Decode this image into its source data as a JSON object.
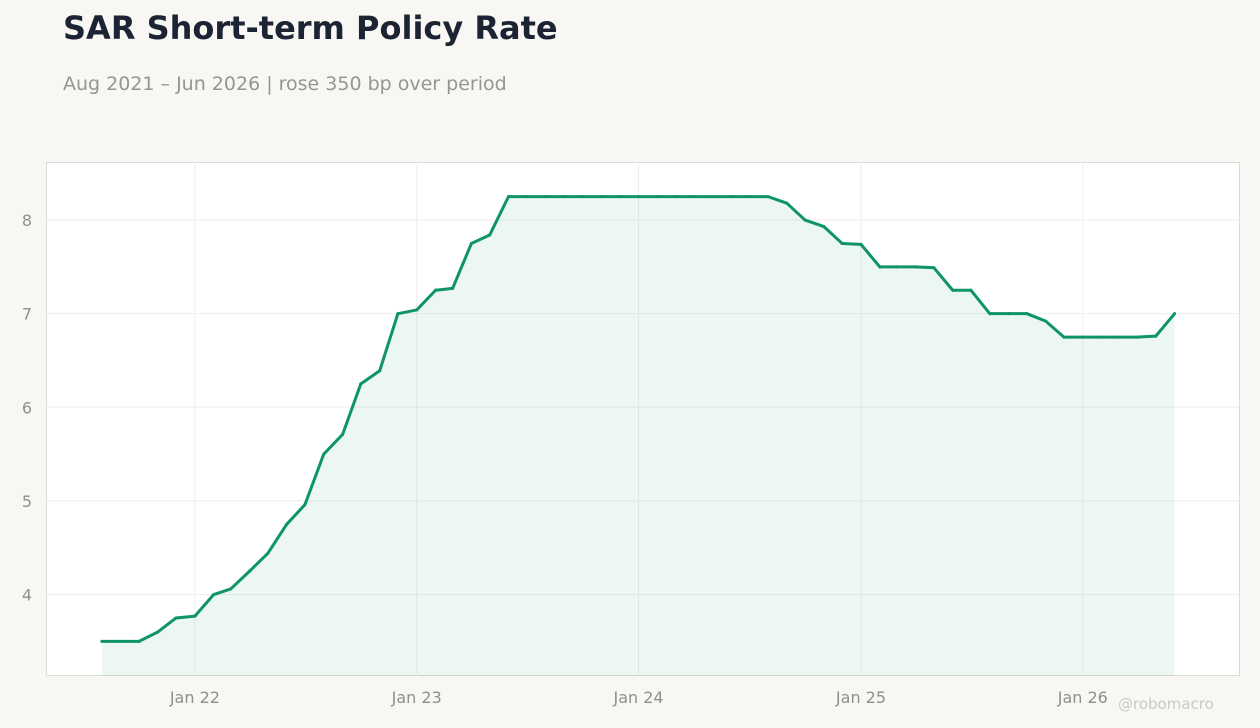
{
  "title": "SAR Short-term Policy Rate",
  "subtitle": "Aug 2021 – Jun 2026 | rose 350 bp over period",
  "watermark": "@robomacro",
  "colors": {
    "line": "#0f9467",
    "fill": "#0f9467",
    "background": "#f8f7f4",
    "plot_bg": "#ffffff"
  },
  "chart_data": {
    "type": "area",
    "title": "SAR Short-term Policy Rate",
    "subtitle": "Aug 2021 – Jun 2026 | rose 350 bp over period",
    "xlabel": "",
    "ylabel": "",
    "grid": true,
    "legend": "none",
    "x_ticks": [
      {
        "date": "2022-01-01",
        "label": "Jan 22"
      },
      {
        "date": "2023-01-01",
        "label": "Jan 23"
      },
      {
        "date": "2024-01-01",
        "label": "Jan 24"
      },
      {
        "date": "2025-01-01",
        "label": "Jan 25"
      },
      {
        "date": "2026-01-01",
        "label": "Jan 26"
      }
    ],
    "y_ticks": [
      4,
      5,
      6,
      7,
      8
    ],
    "xlim": [
      "2021-05-01",
      "2026-09-15"
    ],
    "ylim": [
      3.13,
      8.62
    ],
    "series": [
      {
        "name": "",
        "x": [
          "2021-08-01",
          "2021-09-01",
          "2021-10-01",
          "2021-11-01",
          "2021-12-01",
          "2022-01-01",
          "2022-02-01",
          "2022-03-01",
          "2022-04-01",
          "2022-05-01",
          "2022-06-01",
          "2022-07-01",
          "2022-08-01",
          "2022-09-01",
          "2022-10-01",
          "2022-11-01",
          "2022-12-01",
          "2023-01-01",
          "2023-02-01",
          "2023-03-01",
          "2023-04-01",
          "2023-05-01",
          "2023-06-01",
          "2023-07-01",
          "2023-08-01",
          "2023-09-01",
          "2023-10-01",
          "2023-11-01",
          "2023-12-01",
          "2024-01-01",
          "2024-02-01",
          "2024-03-01",
          "2024-04-01",
          "2024-05-01",
          "2024-06-01",
          "2024-07-01",
          "2024-08-01",
          "2024-09-01",
          "2024-10-01",
          "2024-11-01",
          "2024-12-01",
          "2025-01-01",
          "2025-02-01",
          "2025-03-01",
          "2025-04-01",
          "2025-05-01",
          "2025-06-01",
          "2025-07-01",
          "2025-08-01",
          "2025-09-01",
          "2025-10-01",
          "2025-11-01",
          "2025-12-01",
          "2026-01-01",
          "2026-02-01",
          "2026-03-01",
          "2026-04-01",
          "2026-05-01",
          "2026-06-01"
        ],
        "values": [
          3.5,
          3.5,
          3.5,
          3.6,
          3.75,
          3.77,
          4.0,
          4.06,
          4.25,
          4.44,
          4.75,
          4.96,
          5.5,
          5.71,
          6.25,
          6.39,
          7.0,
          7.04,
          7.25,
          7.27,
          7.75,
          7.84,
          8.25,
          8.25,
          8.25,
          8.25,
          8.25,
          8.25,
          8.25,
          8.25,
          8.25,
          8.25,
          8.25,
          8.25,
          8.25,
          8.25,
          8.25,
          8.18,
          8.0,
          7.93,
          7.75,
          7.74,
          7.5,
          7.5,
          7.5,
          7.49,
          7.25,
          7.25,
          7.0,
          7.0,
          7.0,
          6.92,
          6.75,
          6.75,
          6.75,
          6.75,
          6.75,
          6.76,
          7.0
        ]
      }
    ]
  }
}
